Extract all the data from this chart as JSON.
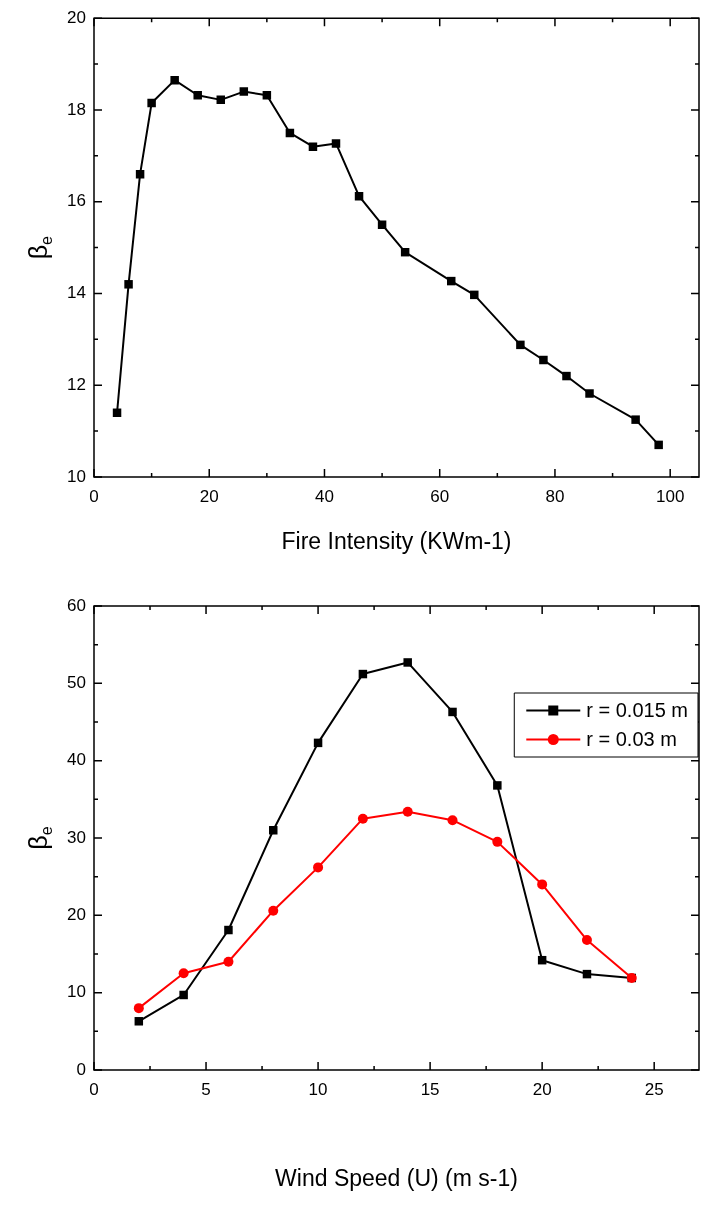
{
  "chart_data": [
    {
      "type": "line",
      "xlabel": "Fire Intensity (KWm-1)",
      "ylabel": "β$_{e}$",
      "marker": "square",
      "grid": false,
      "legend": false,
      "xlim": [
        0,
        105
      ],
      "xticks": [
        0,
        20,
        40,
        60,
        80,
        100
      ],
      "ylim": [
        10,
        20
      ],
      "yticks": [
        10,
        12,
        14,
        16,
        18,
        20
      ],
      "series": [
        {
          "color": "#000000",
          "x": [
            4,
            6,
            8,
            10,
            14,
            18,
            22,
            26,
            30,
            34,
            38,
            42,
            46,
            50,
            54,
            62,
            66,
            74,
            78,
            82,
            86,
            94,
            98
          ],
          "values": [
            11.4,
            14.2,
            16.6,
            18.15,
            18.65,
            18.32,
            18.22,
            18.4,
            18.32,
            17.5,
            17.2,
            17.27,
            16.12,
            15.5,
            14.9,
            14.27,
            13.97,
            12.88,
            12.55,
            12.2,
            11.82,
            11.25,
            10.7
          ]
        }
      ]
    },
    {
      "type": "line",
      "xlabel": "Wind Speed (U) (m s-1)",
      "ylabel": "β$_{e}$",
      "grid": false,
      "legend": "top right",
      "xlim": [
        0,
        27
      ],
      "xticks": [
        0,
        5,
        10,
        15,
        20,
        25
      ],
      "ylim": [
        0,
        60
      ],
      "yticks": [
        0,
        10,
        20,
        30,
        40,
        50,
        60
      ],
      "x": [
        2,
        4,
        6,
        8,
        10,
        12,
        14,
        16,
        18,
        20,
        22,
        24
      ],
      "series": [
        {
          "name": "r = 0.015 m",
          "color": "#000000",
          "marker": "square",
          "values": [
            6.3,
            9.7,
            18.1,
            31,
            42.3,
            51.2,
            52.7,
            46.3,
            36.8,
            14.2,
            12.4,
            11.9
          ]
        },
        {
          "name": "r = 0.03 m",
          "color": "#ff0000",
          "marker": "circle",
          "values": [
            8,
            12.5,
            14,
            20.6,
            26.2,
            32.5,
            33.4,
            32.3,
            29.5,
            24,
            16.8,
            11.9
          ]
        }
      ]
    }
  ]
}
